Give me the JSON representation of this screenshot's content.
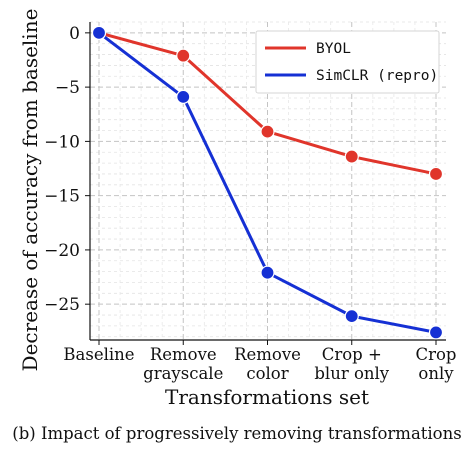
{
  "caption": "(b) Impact of progressively removing transformations",
  "chart_data": {
    "type": "line",
    "title": "",
    "xlabel": "Transformations set",
    "ylabel": "Decrease of accuracy from baseline",
    "categories": [
      [
        "Baseline"
      ],
      [
        "Remove",
        "grayscale"
      ],
      [
        "Remove",
        "color"
      ],
      [
        "Crop +",
        "blur only"
      ],
      [
        "Crop",
        "only"
      ]
    ],
    "yticks": [
      0,
      -5,
      -10,
      -15,
      -20,
      -25
    ],
    "ytick_labels": [
      "0",
      "−5",
      "−10",
      "−15",
      "−20",
      "−25"
    ],
    "ylim": [
      -28.3,
      1.0
    ],
    "grid": true,
    "legend_position": "top-right",
    "series": [
      {
        "name": "BYOL",
        "color": "#e0352b",
        "values": [
          0.0,
          -2.1,
          -9.1,
          -11.4,
          -13.0
        ]
      },
      {
        "name": "SimCLR (repro)",
        "color": "#1530d4",
        "values": [
          0.0,
          -5.9,
          -22.1,
          -26.1,
          -27.6
        ]
      }
    ]
  }
}
